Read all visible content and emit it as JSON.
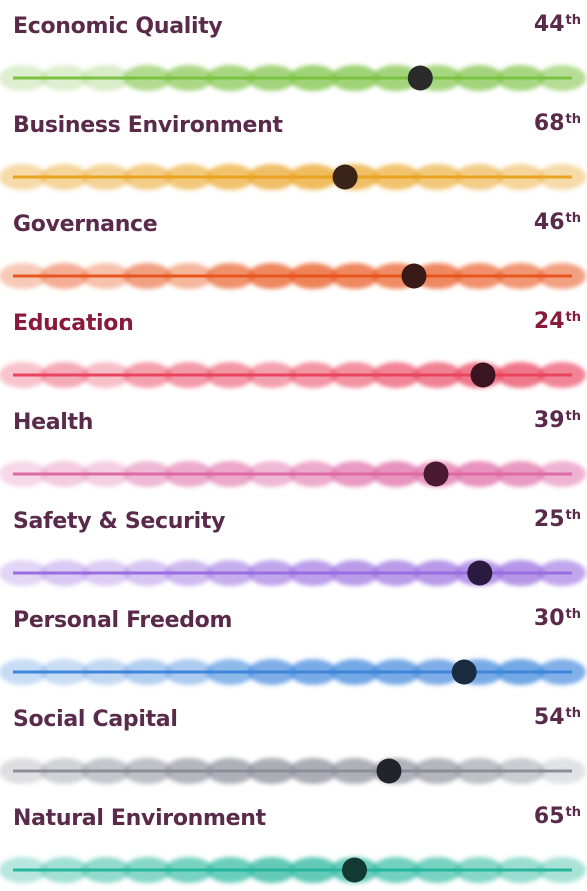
{
  "chart_data": {
    "type": "scatter",
    "title": "",
    "x_direction": "rank 1 at right, rank 1 67 at left",
    "rank_range": [
      1,
      167
    ],
    "series": [
      {
        "category": "Economic Quality",
        "rank": 44,
        "suffix": "th",
        "color": "#7cc242",
        "label_color": "#5a2a4a",
        "dot_color": "#2b2b2b",
        "cloud_weights": [
          0.15,
          0.15,
          0.2,
          0.75,
          0.85,
          0.9,
          0.95,
          1.0,
          1.0,
          0.95,
          0.9,
          0.95,
          0.9,
          0.7
        ]
      },
      {
        "category": "Business Environment",
        "rank": 68,
        "suffix": "th",
        "color": "#e9a321",
        "label_color": "#5a2a4a",
        "dot_color": "#3a2418",
        "cloud_weights": [
          0.4,
          0.5,
          0.55,
          0.65,
          0.75,
          0.85,
          0.95,
          1.0,
          0.95,
          0.85,
          0.75,
          0.65,
          0.5,
          0.4
        ]
      },
      {
        "category": "Governance",
        "rank": 46,
        "suffix": "th",
        "color": "#e8561e",
        "label_color": "#5a2a4a",
        "dot_color": "#3a1a16",
        "cloud_weights": [
          0.25,
          0.55,
          0.35,
          0.7,
          0.45,
          0.85,
          0.95,
          1.0,
          0.95,
          0.9,
          0.95,
          0.85,
          0.8,
          0.7
        ]
      },
      {
        "category": "Education",
        "rank": 24,
        "suffix": "th",
        "color": "#e9445f",
        "label_color": "#8a1a3a",
        "dot_color": "#3a1420",
        "cloud_weights": [
          0.25,
          0.5,
          0.3,
          0.6,
          0.65,
          0.7,
          0.6,
          0.7,
          0.75,
          0.85,
          0.9,
          1.0,
          1.0,
          0.85
        ]
      },
      {
        "category": "Health",
        "rank": 39,
        "suffix": "th",
        "color": "#de6aa5",
        "label_color": "#5a2a4a",
        "dot_color": "#4a1a30",
        "cloud_weights": [
          0.15,
          0.3,
          0.25,
          0.55,
          0.7,
          0.75,
          0.55,
          0.7,
          0.9,
          1.0,
          0.95,
          1.0,
          0.9,
          0.6
        ]
      },
      {
        "category": "Safety & Security",
        "rank": 25,
        "suffix": "th",
        "color": "#9a6de0",
        "label_color": "#5a2a4a",
        "dot_color": "#2a1a40",
        "cloud_weights": [
          0.2,
          0.35,
          0.3,
          0.4,
          0.55,
          0.7,
          0.8,
          0.85,
          0.9,
          0.9,
          0.95,
          1.0,
          1.0,
          0.8
        ]
      },
      {
        "category": "Personal Freedom",
        "rank": 30,
        "suffix": "th",
        "color": "#3f86db",
        "label_color": "#5a2a4a",
        "dot_color": "#1a2a40",
        "cloud_weights": [
          0.2,
          0.2,
          0.25,
          0.4,
          0.45,
          0.75,
          0.9,
          0.95,
          1.0,
          0.95,
          0.9,
          0.95,
          1.0,
          0.85
        ]
      },
      {
        "category": "Social Capital",
        "rank": 54,
        "suffix": "th",
        "color": "#8c8f9a",
        "label_color": "#5a2a4a",
        "dot_color": "#22242a",
        "cloud_weights": [
          0.2,
          0.4,
          0.6,
          0.7,
          0.85,
          0.95,
          1.0,
          1.0,
          0.95,
          0.9,
          0.85,
          0.7,
          0.5,
          0.15
        ]
      },
      {
        "category": "Natural Environment",
        "rank": 65,
        "suffix": "th",
        "color": "#27b79c",
        "label_color": "#5a2a4a",
        "dot_color": "#123a32",
        "cloud_weights": [
          0.3,
          0.45,
          0.6,
          0.7,
          0.8,
          0.9,
          1.0,
          1.0,
          0.95,
          0.85,
          0.8,
          0.7,
          0.55,
          0.4
        ]
      }
    ]
  }
}
